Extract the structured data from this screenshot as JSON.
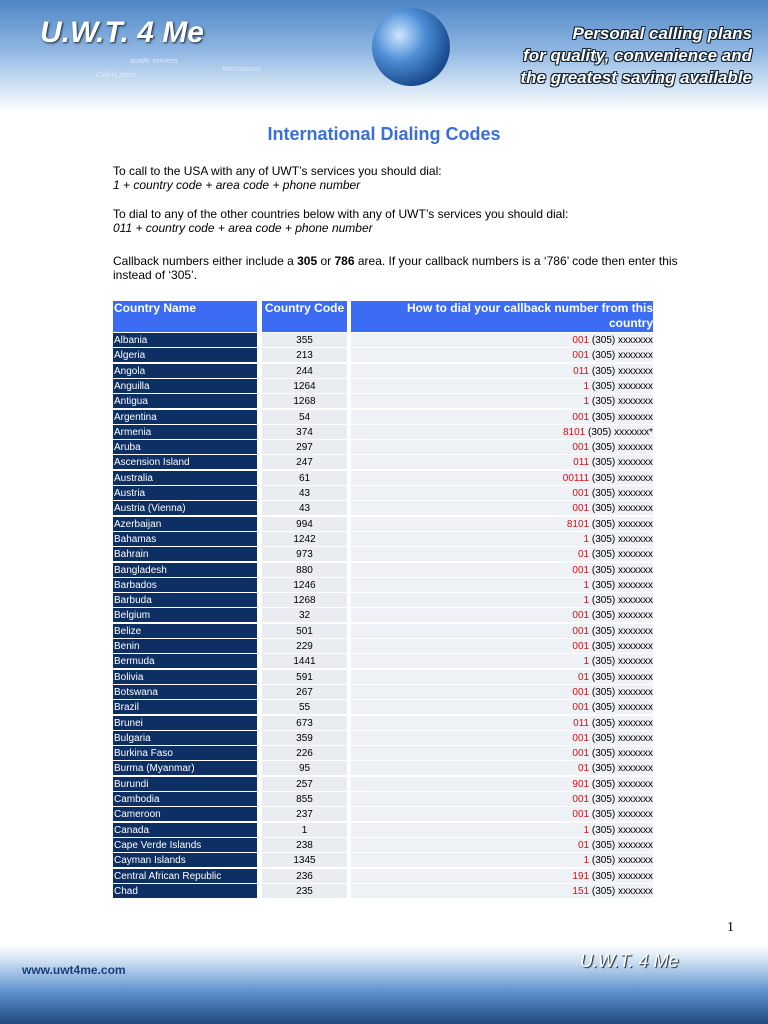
{
  "header": {
    "logo": "U.W.T. 4 Me",
    "small_texts": [
      "quality services",
      "International",
      "Calling plans"
    ],
    "tagline": [
      "Personal calling plans",
      "for quality, convenience and",
      "the greatest saving available"
    ]
  },
  "title": "International Dialing Codes",
  "paragraphs": [
    [
      "To call to the USA with any of UWT’s services you should dial:",
      "1 + country code + area code + phone number"
    ],
    [
      "To dial to any of the other countries below with any of UWT’s services you should dial:",
      "011 + country code + area code + phone number"
    ]
  ],
  "callback_note": [
    "Callback numbers either include a ",
    "305",
    " or ",
    "786",
    " area.  If your callback numbers is a ‘786’ code then enter this instead of ‘305’."
  ],
  "table": {
    "headers": [
      "Country Name",
      "Country Code",
      "How to dial your callback number from this country"
    ],
    "rows": [
      [
        "Albania",
        "355",
        "001",
        "(305) xxxxxxx"
      ],
      [
        "Algeria",
        "213",
        "001",
        "(305) xxxxxxx"
      ],
      [
        "Angola",
        "244",
        "011",
        "(305) xxxxxxx"
      ],
      [
        "Anguilla",
        "1264",
        "1",
        "(305) xxxxxxx"
      ],
      [
        "Antigua",
        "1268",
        "1",
        "(305) xxxxxxx"
      ],
      [
        "Argentina",
        "54",
        "001",
        "(305) xxxxxxx"
      ],
      [
        "Armenia",
        "374",
        "8101",
        "(305) xxxxxxx*"
      ],
      [
        "Aruba",
        "297",
        "001",
        "(305) xxxxxxx"
      ],
      [
        "Ascension Island",
        "247",
        "011",
        "(305) xxxxxxx"
      ],
      [
        "Australia",
        "61",
        "00111",
        "(305) xxxxxxx"
      ],
      [
        "Austria",
        "43",
        "001",
        "(305) xxxxxxx"
      ],
      [
        "Austria (Vienna)",
        "43",
        "001",
        "(305) xxxxxxx"
      ],
      [
        "Azerbaijan",
        "994",
        "8101",
        "(305) xxxxxxx"
      ],
      [
        "Bahamas",
        "1242",
        "1",
        "(305) xxxxxxx"
      ],
      [
        "Bahrain",
        "973",
        "01",
        "(305) xxxxxxx"
      ],
      [
        "Bangladesh",
        "880",
        "001",
        "(305) xxxxxxx"
      ],
      [
        "Barbados",
        "1246",
        "1",
        "(305) xxxxxxx"
      ],
      [
        "Barbuda",
        "1268",
        "1",
        "(305) xxxxxxx"
      ],
      [
        "Belgium",
        "32",
        "001",
        "(305) xxxxxxx"
      ],
      [
        "Belize",
        "501",
        "001",
        "(305) xxxxxxx"
      ],
      [
        "Benin",
        "229",
        "001",
        "(305) xxxxxxx"
      ],
      [
        "Bermuda",
        "1441",
        "1",
        "(305) xxxxxxx"
      ],
      [
        "Bolivia",
        "591",
        "01",
        "(305) xxxxxxx"
      ],
      [
        "Botswana",
        "267",
        "001",
        "(305) xxxxxxx"
      ],
      [
        "Brazil",
        "55",
        "001",
        "(305) xxxxxxx"
      ],
      [
        "Brunei",
        "673",
        "011",
        "(305) xxxxxxx"
      ],
      [
        "Bulgaria",
        "359",
        "001",
        "(305) xxxxxxx"
      ],
      [
        "Burkina Faso",
        "226",
        "001",
        "(305) xxxxxxx"
      ],
      [
        "Burma (Myanmar)",
        "95",
        "01",
        "(305) xxxxxxx"
      ],
      [
        "Burundi",
        "257",
        "901",
        "(305) xxxxxxx"
      ],
      [
        "Cambodia",
        "855",
        "001",
        "(305) xxxxxxx"
      ],
      [
        "Cameroon",
        "237",
        "001",
        "(305) xxxxxxx"
      ],
      [
        "Canada",
        "1",
        "1",
        "(305) xxxxxxx"
      ],
      [
        "Cape Verde Islands",
        "238",
        "01",
        "(305) xxxxxxx"
      ],
      [
        "Cayman Islands",
        "1345",
        "1",
        "(305) xxxxxxx"
      ],
      [
        "Central African Republic",
        "236",
        "191",
        "(305) xxxxxxx"
      ],
      [
        "Chad",
        "235",
        "151",
        "(305) xxxxxxx"
      ]
    ]
  },
  "page_number": "1",
  "footer": {
    "url": "www.uwt4me.com",
    "logo": "U.W.T. 4 Me"
  }
}
